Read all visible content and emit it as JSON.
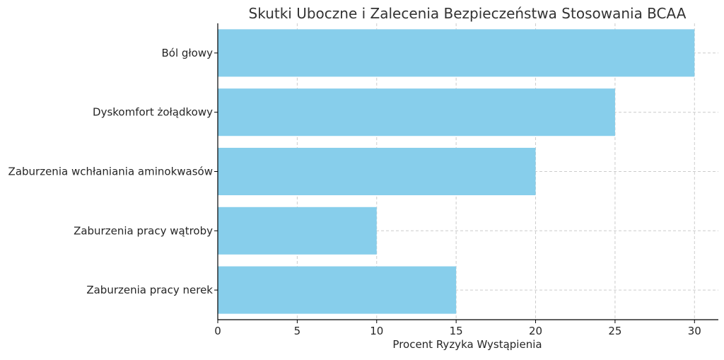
{
  "chart_data": {
    "type": "bar",
    "orientation": "horizontal",
    "title": "Skutki Uboczne i Zalecenia Bezpieczeństwa Stosowania BCAA",
    "xlabel": "Procent Ryzyka Wystąpienia",
    "ylabel": "",
    "categories": [
      "Ból głowy",
      "Dyskomfort żołądkowy",
      "Zaburzenia wchłaniania aminokwasów",
      "Zaburzenia pracy wątroby",
      "Zaburzenia pracy nerek"
    ],
    "values": [
      30,
      25,
      20,
      10,
      15
    ],
    "xlim": [
      0,
      31.5
    ],
    "xticks": [
      0,
      5,
      10,
      15,
      20,
      25,
      30
    ],
    "grid": true,
    "legend": "none",
    "bar_color": "#87ceeb"
  }
}
